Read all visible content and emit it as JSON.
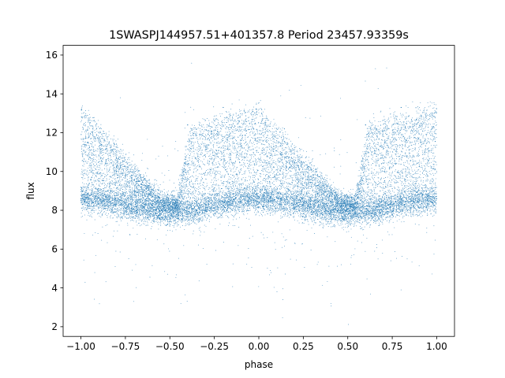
{
  "chart_data": {
    "type": "scatter",
    "title": "1SWASPJ144957.51+401357.8 Period 23457.93359s",
    "xlabel": "phase",
    "ylabel": "flux",
    "xlim": [
      -1.1,
      1.1
    ],
    "ylim": [
      1.5,
      16.5
    ],
    "x_ticks": [
      -1.0,
      -0.75,
      -0.5,
      -0.25,
      0.0,
      0.25,
      0.5,
      0.75,
      1.0
    ],
    "x_tick_labels": [
      "−1.00",
      "−0.75",
      "−0.50",
      "−0.25",
      "0.00",
      "0.25",
      "0.50",
      "0.75",
      "1.00"
    ],
    "y_ticks": [
      2,
      4,
      6,
      8,
      10,
      12,
      14,
      16
    ],
    "y_tick_labels": [
      "2",
      "4",
      "6",
      "8",
      "10",
      "12",
      "14",
      "16"
    ],
    "grid": false,
    "point_color": "#1f77b4",
    "sample_points": [
      {
        "phase": -1.0,
        "flux": 8.6
      },
      {
        "phase": -0.95,
        "flux": 12.5
      },
      {
        "phase": -0.75,
        "flux": 8.9
      },
      {
        "phase": -0.5,
        "flux": 8.3
      },
      {
        "phase": -0.4,
        "flux": 12.4
      },
      {
        "phase": -0.2,
        "flux": 13.3
      },
      {
        "phase": 0.0,
        "flux": 8.6
      },
      {
        "phase": 0.25,
        "flux": 8.8
      },
      {
        "phase": 0.5,
        "flux": 8.3
      },
      {
        "phase": 0.6,
        "flux": 12.4
      },
      {
        "phase": 0.8,
        "flux": 13.3
      },
      {
        "phase": 1.0,
        "flux": 8.6
      }
    ]
  }
}
